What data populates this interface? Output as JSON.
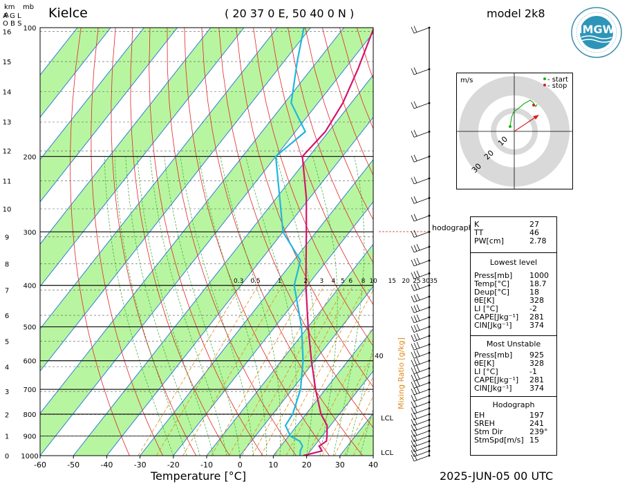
{
  "header": {
    "station": "Kielce",
    "coords": "( 20 37 0 E, 50 40 0 N )",
    "model": "model 2k8",
    "date": "2025-JUN-05   00 UTC",
    "km_label": "km",
    "agl_label": [
      "A",
      "G",
      "L"
    ],
    "obs_label": "O B S",
    "mb_label": "mb",
    "logo_text": "IMGW"
  },
  "axes": {
    "x_title": "Temperature [°C]",
    "x_ticks": [
      -60,
      -50,
      -40,
      -30,
      -20,
      -10,
      0,
      10,
      20,
      30,
      40
    ],
    "p_ticks": [
      100,
      200,
      300,
      400,
      500,
      600,
      700,
      800,
      900,
      1000
    ],
    "km_ticks": [
      0,
      1,
      2,
      3,
      4,
      5,
      6,
      7,
      8,
      9,
      10,
      11,
      12,
      13,
      14,
      15,
      16
    ],
    "mixing_ratio_title": "Mixing Ratio [g/kg]",
    "mixing_ratio_labels": [
      "0.3",
      "0.5",
      "1",
      "2",
      "3",
      "4",
      "5",
      "6",
      "8",
      "10",
      "15",
      "20",
      "25",
      "30",
      "35"
    ],
    "mixing_40_label": "40",
    "lcl_labels": [
      "LCL",
      "LCL"
    ]
  },
  "chart_data": {
    "type": "skew-t",
    "temperature_profile": [
      {
        "p": 1000,
        "t": 19.0
      },
      {
        "p": 975,
        "t": 23.5
      },
      {
        "p": 950,
        "t": 21.5
      },
      {
        "p": 925,
        "t": 22.5
      },
      {
        "p": 900,
        "t": 21.5
      },
      {
        "p": 850,
        "t": 19.0
      },
      {
        "p": 800,
        "t": 14.5
      },
      {
        "p": 700,
        "t": 7.0
      },
      {
        "p": 600,
        "t": -1.0
      },
      {
        "p": 500,
        "t": -10.0
      },
      {
        "p": 400,
        "t": -20.5
      },
      {
        "p": 300,
        "t": -33.0
      },
      {
        "p": 250,
        "t": -41.0
      },
      {
        "p": 200,
        "t": -52.0
      },
      {
        "p": 175,
        "t": -51.0
      },
      {
        "p": 150,
        "t": -52.5
      },
      {
        "p": 125,
        "t": -56.0
      },
      {
        "p": 100,
        "t": -61.0
      }
    ],
    "dewpoint_profile": [
      {
        "p": 1000,
        "t": 18.0
      },
      {
        "p": 975,
        "t": 17.0
      },
      {
        "p": 950,
        "t": 16.5
      },
      {
        "p": 925,
        "t": 14.5
      },
      {
        "p": 900,
        "t": 10.5
      },
      {
        "p": 850,
        "t": 6.5
      },
      {
        "p": 800,
        "t": 6.0
      },
      {
        "p": 700,
        "t": 2.5
      },
      {
        "p": 600,
        "t": -3.5
      },
      {
        "p": 500,
        "t": -12.0
      },
      {
        "p": 400,
        "t": -24.0
      },
      {
        "p": 350,
        "t": -28.0
      },
      {
        "p": 300,
        "t": -40.0
      },
      {
        "p": 250,
        "t": -49.0
      },
      {
        "p": 200,
        "t": -60.0
      },
      {
        "p": 175,
        "t": -57.0
      },
      {
        "p": 150,
        "t": -68.0
      },
      {
        "p": 120,
        "t": -76.0
      },
      {
        "p": 100,
        "t": -82.0
      }
    ],
    "hodograph": {
      "units": "m/s",
      "rings": [
        10,
        20,
        30
      ],
      "legend": [
        "- start",
        "- stop"
      ],
      "start_color": "#1ab01a",
      "stop_color": "#d42020"
    },
    "hodograph_limit_label": "hodograph limit"
  },
  "indices": {
    "top": [
      {
        "k": "K",
        "v": "27"
      },
      {
        "k": "TT",
        "v": "46"
      },
      {
        "k": "PW[cm]",
        "v": "2.78"
      }
    ],
    "lowest_title": "Lowest level",
    "lowest": [
      {
        "k": "Press[mb]",
        "v": "1000"
      },
      {
        "k": "Temp[°C]",
        "v": "18.7"
      },
      {
        "k": "Deup[°C]",
        "v": "18"
      },
      {
        "k": "θE[K]",
        "v": "328"
      },
      {
        "k": "LI [°C]",
        "v": "-2"
      },
      {
        "k": "CAPE[Jkg⁻¹]",
        "v": "281"
      },
      {
        "k": "CIN[Jkg⁻¹]",
        "v": "374"
      }
    ],
    "unstable_title": "Most Unstable",
    "unstable": [
      {
        "k": "Press[mb]",
        "v": "925"
      },
      {
        "k": "θE[K]",
        "v": "328"
      },
      {
        "k": "LI [°C]",
        "v": "-1"
      },
      {
        "k": "CAPE[Jkg⁻¹]",
        "v": "281"
      },
      {
        "k": "CIN[Jkg⁻¹]",
        "v": "374"
      }
    ],
    "hodo_title": "Hodograph",
    "hodo": [
      {
        "k": "EH",
        "v": "197"
      },
      {
        "k": "SREH",
        "v": "241"
      },
      {
        "k": "Stm Dir",
        "v": "239°"
      },
      {
        "k": "StmSpd[m/s]",
        "v": "15"
      }
    ]
  },
  "colors": {
    "temperature": "#d4146a",
    "dewpoint": "#20b6dc",
    "green_band": "#b8f5a0",
    "isotherm": "#2a7fd6",
    "dry_adiabat": "#e02424",
    "moist_adiabat": "#2fa82f",
    "mixing_ratio": "#e08a17"
  }
}
